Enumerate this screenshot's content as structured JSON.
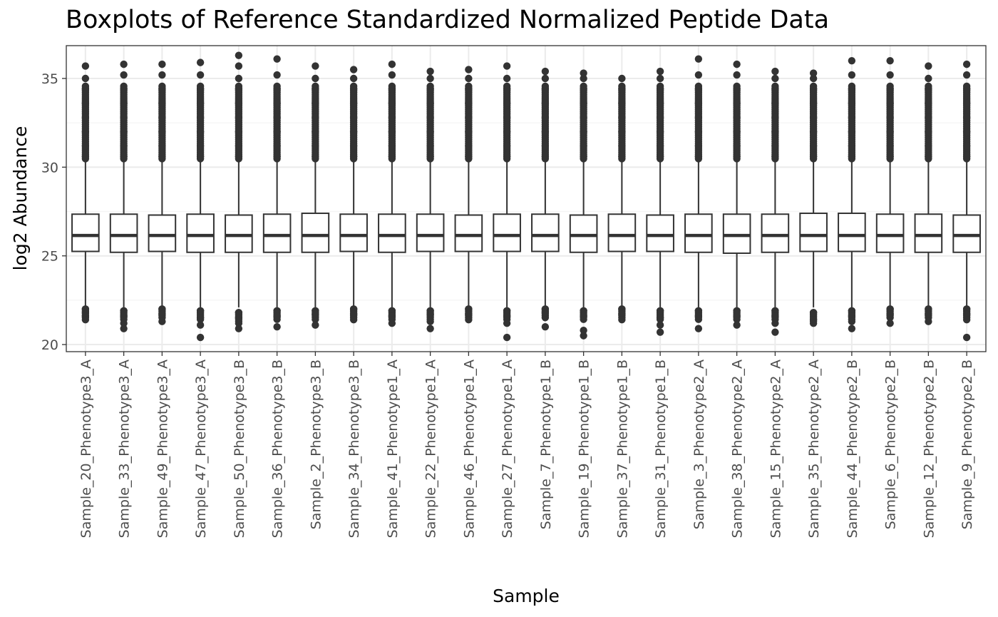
{
  "chart_data": {
    "type": "boxplot",
    "title": "Boxplots of Reference Standardized Normalized Peptide Data",
    "xlabel": "Sample",
    "ylabel": "log2 Abundance",
    "ylim": [
      19.6,
      36.85
    ],
    "yticks": [
      20,
      25,
      30,
      35
    ],
    "grid": true,
    "legend": "none",
    "colors": {
      "box": "#333333",
      "fill": "#ffffff",
      "outlier": "#333333",
      "grid_major": "#ebebeb",
      "grid_minor": "#f4f4f4",
      "border": "#333333"
    },
    "categories": [
      "Sample_20_Phenotype3_A",
      "Sample_33_Phenotype3_A",
      "Sample_49_Phenotype3_A",
      "Sample_47_Phenotype3_A",
      "Sample_50_Phenotype3_B",
      "Sample_36_Phenotype3_B",
      "Sample_2_Phenotype3_B",
      "Sample_34_Phenotype3_B",
      "Sample_41_Phenotype1_A",
      "Sample_22_Phenotype1_A",
      "Sample_46_Phenotype1_A",
      "Sample_27_Phenotype1_A",
      "Sample_7_Phenotype1_B",
      "Sample_19_Phenotype1_B",
      "Sample_37_Phenotype1_B",
      "Sample_31_Phenotype1_B",
      "Sample_3_Phenotype2_A",
      "Sample_38_Phenotype2_A",
      "Sample_15_Phenotype2_A",
      "Sample_35_Phenotype2_A",
      "Sample_44_Phenotype2_B",
      "Sample_6_Phenotype2_B",
      "Sample_12_Phenotype2_B",
      "Sample_9_Phenotype2_B"
    ],
    "boxes": [
      {
        "q1": 25.25,
        "median": 26.15,
        "q3": 27.35,
        "lower_whisker": 22.1,
        "upper_whisker": 30.4,
        "outliers_low": [
          22.0,
          21.8,
          21.6,
          21.4
        ],
        "outliers_high": [
          30.6,
          31.2,
          32.0,
          32.8,
          33.6,
          34.4,
          35.0,
          35.7
        ]
      },
      {
        "q1": 25.2,
        "median": 26.15,
        "q3": 27.35,
        "lower_whisker": 22.1,
        "upper_whisker": 30.4,
        "outliers_low": [
          21.9,
          21.6,
          21.2,
          20.9
        ],
        "outliers_high": [
          30.6,
          31.2,
          32.0,
          32.8,
          33.6,
          34.4,
          35.2,
          35.8
        ]
      },
      {
        "q1": 25.25,
        "median": 26.15,
        "q3": 27.3,
        "lower_whisker": 22.1,
        "upper_whisker": 30.4,
        "outliers_low": [
          22.0,
          21.7,
          21.3
        ],
        "outliers_high": [
          30.6,
          31.2,
          32.0,
          32.8,
          33.6,
          34.4,
          35.2,
          35.8
        ]
      },
      {
        "q1": 25.2,
        "median": 26.15,
        "q3": 27.35,
        "lower_whisker": 22.1,
        "upper_whisker": 30.4,
        "outliers_low": [
          21.9,
          21.5,
          21.1,
          20.4
        ],
        "outliers_high": [
          30.6,
          31.2,
          32.0,
          32.8,
          33.6,
          34.4,
          35.2,
          35.9
        ]
      },
      {
        "q1": 25.2,
        "median": 26.15,
        "q3": 27.3,
        "lower_whisker": 22.1,
        "upper_whisker": 30.4,
        "outliers_low": [
          21.8,
          21.5,
          21.2,
          20.9
        ],
        "outliers_high": [
          30.6,
          31.2,
          32.0,
          32.8,
          33.6,
          34.4,
          35.0,
          35.7,
          36.3
        ]
      },
      {
        "q1": 25.2,
        "median": 26.15,
        "q3": 27.35,
        "lower_whisker": 22.1,
        "upper_whisker": 30.4,
        "outliers_low": [
          21.9,
          21.6,
          21.0
        ],
        "outliers_high": [
          30.6,
          31.2,
          32.0,
          32.8,
          33.6,
          34.4,
          35.2,
          36.1
        ]
      },
      {
        "q1": 25.2,
        "median": 26.15,
        "q3": 27.4,
        "lower_whisker": 22.1,
        "upper_whisker": 30.4,
        "outliers_low": [
          21.9,
          21.7,
          21.1
        ],
        "outliers_high": [
          30.6,
          31.2,
          32.0,
          32.8,
          33.6,
          34.4,
          35.0,
          35.7
        ]
      },
      {
        "q1": 25.25,
        "median": 26.15,
        "q3": 27.35,
        "lower_whisker": 22.1,
        "upper_whisker": 30.4,
        "outliers_low": [
          22.0,
          21.7,
          21.4
        ],
        "outliers_high": [
          30.6,
          31.2,
          32.0,
          32.8,
          33.6,
          34.4,
          35.0,
          35.5
        ]
      },
      {
        "q1": 25.2,
        "median": 26.15,
        "q3": 27.35,
        "lower_whisker": 22.1,
        "upper_whisker": 30.4,
        "outliers_low": [
          21.9,
          21.6,
          21.2
        ],
        "outliers_high": [
          30.6,
          31.2,
          32.0,
          32.8,
          33.6,
          34.4,
          35.2,
          35.8
        ]
      },
      {
        "q1": 25.25,
        "median": 26.15,
        "q3": 27.35,
        "lower_whisker": 22.1,
        "upper_whisker": 30.4,
        "outliers_low": [
          21.9,
          21.7,
          21.3,
          20.9
        ],
        "outliers_high": [
          30.6,
          31.2,
          32.0,
          32.8,
          33.6,
          34.4,
          35.0,
          35.4
        ]
      },
      {
        "q1": 25.25,
        "median": 26.15,
        "q3": 27.3,
        "lower_whisker": 22.1,
        "upper_whisker": 30.4,
        "outliers_low": [
          22.0,
          21.7,
          21.4
        ],
        "outliers_high": [
          30.6,
          31.2,
          32.0,
          32.8,
          33.6,
          34.4,
          35.0,
          35.5
        ]
      },
      {
        "q1": 25.25,
        "median": 26.15,
        "q3": 27.35,
        "lower_whisker": 22.1,
        "upper_whisker": 30.4,
        "outliers_low": [
          21.9,
          21.6,
          21.2,
          20.4
        ],
        "outliers_high": [
          30.6,
          31.2,
          32.0,
          32.8,
          33.6,
          34.4,
          35.0,
          35.7
        ]
      },
      {
        "q1": 25.25,
        "median": 26.15,
        "q3": 27.35,
        "lower_whisker": 22.1,
        "upper_whisker": 30.4,
        "outliers_low": [
          22.0,
          21.8,
          21.0
        ],
        "outliers_high": [
          30.6,
          31.2,
          32.0,
          32.8,
          33.6,
          34.4,
          35.0,
          35.4
        ]
      },
      {
        "q1": 25.2,
        "median": 26.15,
        "q3": 27.3,
        "lower_whisker": 22.1,
        "upper_whisker": 30.4,
        "outliers_low": [
          21.9,
          21.6,
          20.8,
          20.5
        ],
        "outliers_high": [
          30.6,
          31.2,
          32.0,
          32.8,
          33.6,
          34.4,
          35.0,
          35.3
        ]
      },
      {
        "q1": 25.25,
        "median": 26.15,
        "q3": 27.35,
        "lower_whisker": 22.1,
        "upper_whisker": 30.4,
        "outliers_low": [
          22.0,
          21.7,
          21.4
        ],
        "outliers_high": [
          30.6,
          31.2,
          32.0,
          32.8,
          33.6,
          34.4,
          35.0
        ]
      },
      {
        "q1": 25.25,
        "median": 26.15,
        "q3": 27.3,
        "lower_whisker": 22.1,
        "upper_whisker": 30.4,
        "outliers_low": [
          21.9,
          21.5,
          21.1,
          20.7
        ],
        "outliers_high": [
          30.6,
          31.2,
          32.0,
          32.8,
          33.6,
          34.4,
          35.0,
          35.4
        ]
      },
      {
        "q1": 25.2,
        "median": 26.15,
        "q3": 27.35,
        "lower_whisker": 22.1,
        "upper_whisker": 30.4,
        "outliers_low": [
          21.9,
          21.6,
          20.9
        ],
        "outliers_high": [
          30.6,
          31.2,
          32.0,
          32.8,
          33.6,
          34.4,
          35.2,
          36.1
        ]
      },
      {
        "q1": 25.15,
        "median": 26.15,
        "q3": 27.35,
        "lower_whisker": 22.1,
        "upper_whisker": 30.4,
        "outliers_low": [
          21.9,
          21.6,
          21.1
        ],
        "outliers_high": [
          30.6,
          31.2,
          32.0,
          32.8,
          33.6,
          34.4,
          35.2,
          35.8
        ]
      },
      {
        "q1": 25.2,
        "median": 26.15,
        "q3": 27.35,
        "lower_whisker": 22.1,
        "upper_whisker": 30.4,
        "outliers_low": [
          21.9,
          21.6,
          21.2,
          20.7
        ],
        "outliers_high": [
          30.6,
          31.2,
          32.0,
          32.8,
          33.6,
          34.4,
          35.0,
          35.4
        ]
      },
      {
        "q1": 25.25,
        "median": 26.15,
        "q3": 27.4,
        "lower_whisker": 22.1,
        "upper_whisker": 30.4,
        "outliers_low": [
          21.8,
          21.4,
          21.2
        ],
        "outliers_high": [
          30.6,
          31.2,
          32.0,
          32.8,
          33.6,
          34.4,
          35.0,
          35.3
        ]
      },
      {
        "q1": 25.25,
        "median": 26.15,
        "q3": 27.4,
        "lower_whisker": 22.1,
        "upper_whisker": 30.4,
        "outliers_low": [
          21.9,
          21.6,
          21.3,
          20.9
        ],
        "outliers_high": [
          30.6,
          31.2,
          32.0,
          32.8,
          33.6,
          34.4,
          35.2,
          36.0
        ]
      },
      {
        "q1": 25.2,
        "median": 26.15,
        "q3": 27.35,
        "lower_whisker": 22.1,
        "upper_whisker": 30.4,
        "outliers_low": [
          22.0,
          21.7,
          21.2
        ],
        "outliers_high": [
          30.6,
          31.2,
          32.0,
          32.8,
          33.6,
          34.4,
          35.2,
          36.0
        ]
      },
      {
        "q1": 25.2,
        "median": 26.15,
        "q3": 27.35,
        "lower_whisker": 22.1,
        "upper_whisker": 30.4,
        "outliers_low": [
          22.0,
          21.7,
          21.3
        ],
        "outliers_high": [
          30.6,
          31.2,
          32.0,
          32.8,
          33.6,
          34.4,
          35.0,
          35.7
        ]
      },
      {
        "q1": 25.2,
        "median": 26.15,
        "q3": 27.3,
        "lower_whisker": 22.1,
        "upper_whisker": 30.4,
        "outliers_low": [
          22.0,
          21.7,
          21.4,
          20.4
        ],
        "outliers_high": [
          30.6,
          31.2,
          32.0,
          32.8,
          33.6,
          34.4,
          35.2,
          35.8
        ]
      }
    ]
  }
}
